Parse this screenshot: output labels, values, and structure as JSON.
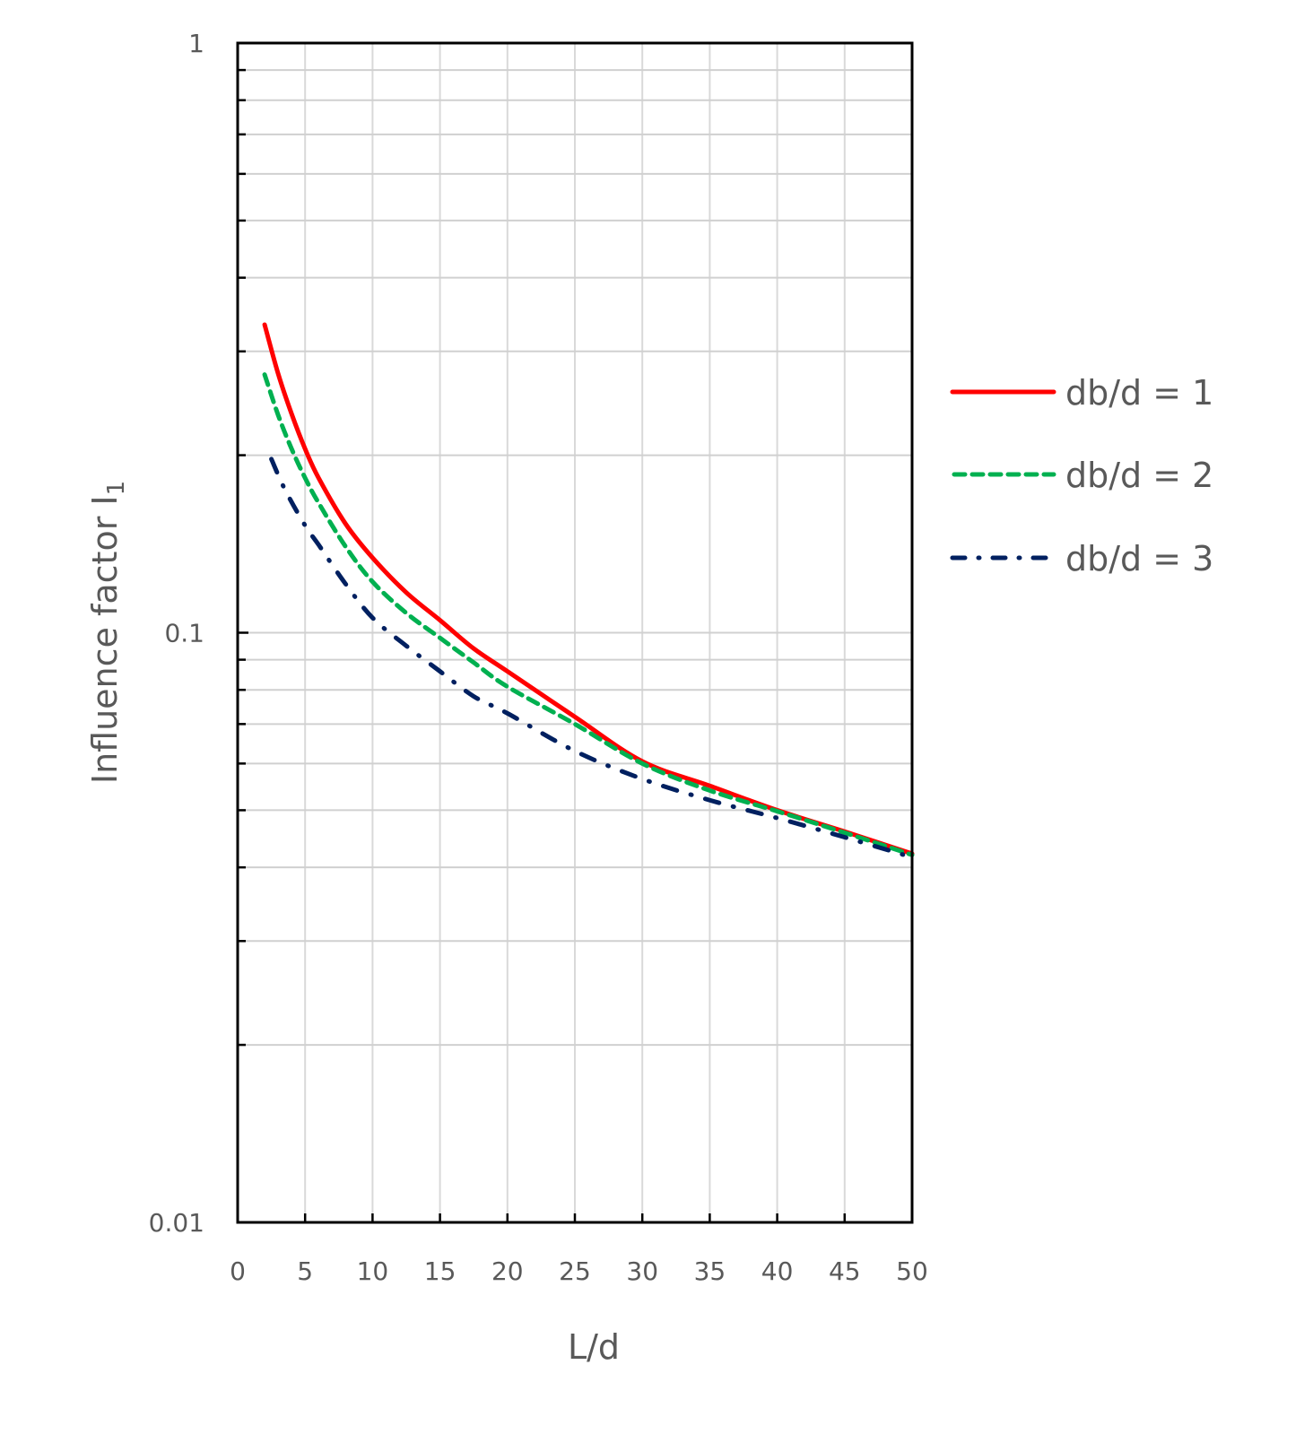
{
  "chart_data": {
    "type": "line",
    "title": "",
    "xlabel": "L/d",
    "ylabel": "Influence factor I",
    "ylabel_subscript": "1",
    "xscale": "linear",
    "yscale": "log",
    "xlim": [
      0,
      50
    ],
    "ylim": [
      0.01,
      1
    ],
    "x_ticks": [
      0,
      5,
      10,
      15,
      20,
      25,
      30,
      35,
      40,
      45,
      50
    ],
    "x_tick_labels": [
      "0",
      "5",
      "10",
      "15",
      "20",
      "25",
      "30",
      "35",
      "40",
      "45",
      "50"
    ],
    "y_ticks": [
      0.01,
      0.1,
      1
    ],
    "y_tick_labels": [
      "0.01",
      "0.1",
      "1"
    ],
    "y_minor_ticks": [
      0.02,
      0.03,
      0.04,
      0.05,
      0.06,
      0.07,
      0.08,
      0.09,
      0.2,
      0.3,
      0.4,
      0.5,
      0.6,
      0.7,
      0.8,
      0.9
    ],
    "grid": true,
    "legend_position": "right",
    "series": [
      {
        "name": "db/d = 1",
        "color": "#FF0000",
        "dash": "solid",
        "x": [
          2,
          3,
          4,
          5,
          6,
          8,
          10,
          12.5,
          15,
          17.5,
          20,
          25,
          30,
          35,
          40,
          45,
          50
        ],
        "values": [
          0.333,
          0.275,
          0.235,
          0.205,
          0.183,
          0.153,
          0.134,
          0.117,
          0.105,
          0.094,
          0.086,
          0.072,
          0.0605,
          0.055,
          0.05,
          0.046,
          0.0422
        ]
      },
      {
        "name": "db/d = 2",
        "color": "#00B050",
        "dash": "dashed",
        "x": [
          2,
          3,
          4,
          5,
          6,
          8,
          10,
          12.5,
          15,
          17.5,
          20,
          25,
          30,
          35,
          40,
          45,
          50
        ],
        "values": [
          0.274,
          0.234,
          0.205,
          0.183,
          0.166,
          0.14,
          0.122,
          0.108,
          0.098,
          0.089,
          0.081,
          0.07,
          0.06,
          0.054,
          0.0498,
          0.0458,
          0.042
        ]
      },
      {
        "name": "db/d = 3",
        "color": "#002060",
        "dash": "dash-dot-dot",
        "x": [
          2.5,
          3.5,
          5,
          6,
          8,
          10,
          12.5,
          15,
          17.5,
          20,
          25,
          30,
          35,
          40,
          45,
          50
        ],
        "values": [
          0.197,
          0.175,
          0.152,
          0.141,
          0.121,
          0.106,
          0.095,
          0.086,
          0.078,
          0.073,
          0.063,
          0.0565,
          0.052,
          0.0485,
          0.045,
          0.0416
        ]
      }
    ]
  },
  "legend": {
    "items": [
      {
        "label": "db/d = 1"
      },
      {
        "label": "db/d = 2"
      },
      {
        "label": "db/d = 3"
      }
    ]
  },
  "axes": {
    "x_title": "L/d",
    "y_title": "Influence factor I",
    "y_title_sub": "1"
  }
}
